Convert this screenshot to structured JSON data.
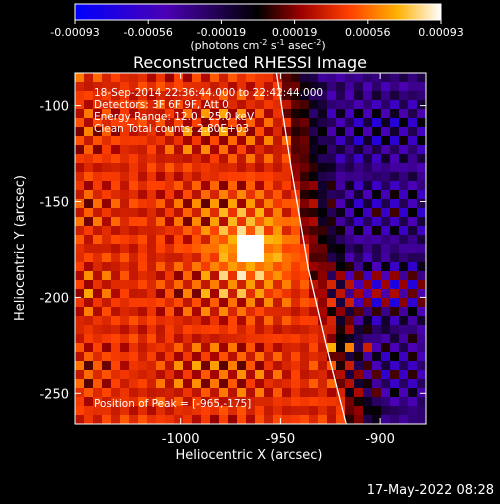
{
  "colorbar": {
    "tick_labels": [
      "-0.00093",
      "-0.00056",
      "-0.00019",
      "0.00019",
      "0.00056",
      "0.00093"
    ],
    "units_main": "(photons cm",
    "units_exp1": "-2",
    "units_mid": " s",
    "units_exp2": "-1",
    "units_mid2": " asec",
    "units_exp3": "-2",
    "units_close": ")",
    "colors": [
      "#0000ff",
      "#4b00b4",
      "#000000",
      "#a00000",
      "#ff4000",
      "#ffb000",
      "#ffffff"
    ]
  },
  "image": {
    "title": "Reconstructed RHESSI Image",
    "annotations": [
      "18-Sep-2014 22:36:44.000 to 22:42:44.000",
      "Detectors: 3F 6F 9F, Att 0",
      "Energy Range: 12.0 - 25.0 keV",
      "Clean    Total counts: 2.80E+03"
    ],
    "peak_label": "Position of Peak = [-965,-175]",
    "xlabel": "Heliocentric X (arcsec)",
    "ylabel": "Heliocentric Y (arcsec)",
    "x_ticks": [
      {
        "label": "-1000",
        "value": -1000
      },
      {
        "label": "-950",
        "value": -950
      },
      {
        "label": "-900",
        "value": -900
      }
    ],
    "y_ticks": [
      {
        "label": "-100",
        "value": -100
      },
      {
        "label": "-150",
        "value": -150
      },
      {
        "label": "-200",
        "value": -200
      },
      {
        "label": "-250",
        "value": -250
      }
    ],
    "xlim": [
      -1053,
      -877
    ],
    "ylim": [
      -266,
      -83
    ],
    "peak": {
      "x": -965,
      "y": -175
    },
    "limb_line": [
      [
        -952,
        -83
      ],
      [
        -945,
        -130
      ],
      [
        -936,
        -185
      ],
      [
        -927,
        -225
      ],
      [
        -917,
        -266
      ]
    ]
  },
  "footer": {
    "date": "17-May-2022 08:28"
  }
}
